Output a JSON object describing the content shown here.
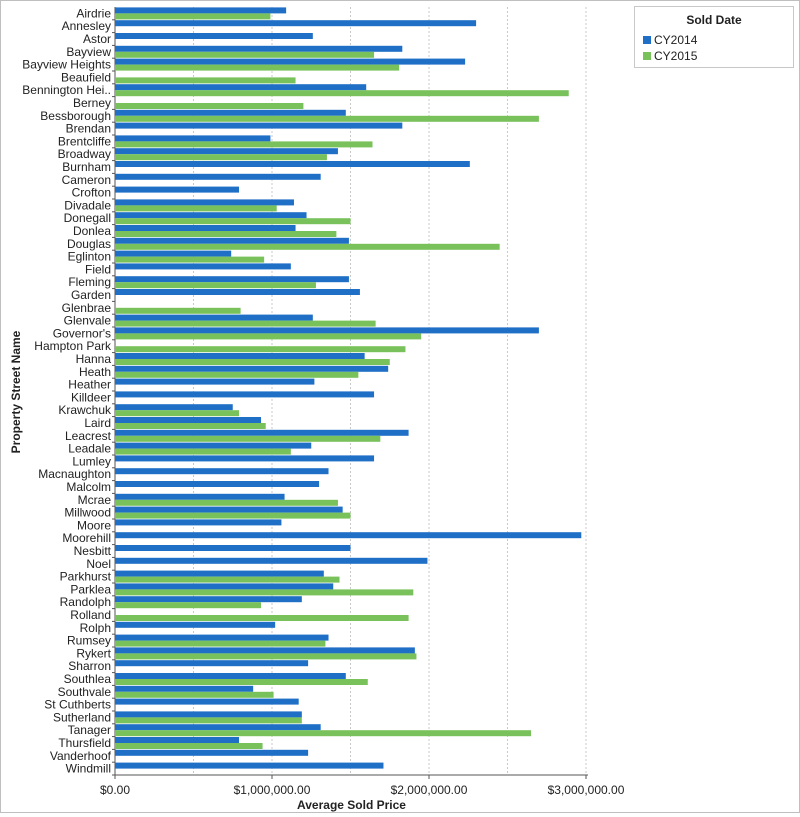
{
  "chart_data": {
    "type": "bar",
    "orientation": "horizontal",
    "xlabel": "Average Sold Price",
    "ylabel": "Property Street Name",
    "xlim": [
      0,
      3000000
    ],
    "xticks": [
      0,
      1000000,
      2000000,
      3000000
    ],
    "xtick_labels": [
      "$0.00",
      "$1,000,000.00",
      "$2,000,000.00",
      "$3,000,000.00"
    ],
    "grid": true,
    "legend_title": "Sold Date",
    "legend_position": "top-right",
    "categories": [
      "Airdrie",
      "Annesley",
      "Astor",
      "Bayview",
      "Bayview Heights",
      "Beaufield",
      "Bennington Hei..",
      "Berney",
      "Bessborough",
      "Brendan",
      "Brentcliffe",
      "Broadway",
      "Burnham",
      "Cameron",
      "Crofton",
      "Divadale",
      "Donegall",
      "Donlea",
      "Douglas",
      "Eglinton",
      "Field",
      "Fleming",
      "Garden",
      "Glenbrae",
      "Glenvale",
      "Governor's",
      "Hampton Park",
      "Hanna",
      "Heath",
      "Heather",
      "Killdeer",
      "Krawchuk",
      "Laird",
      "Leacrest",
      "Leadale",
      "Lumley",
      "Macnaughton",
      "Malcolm",
      "Mcrae",
      "Millwood",
      "Moore",
      "Moorehill",
      "Nesbitt",
      "Noel",
      "Parkhurst",
      "Parklea",
      "Randolph",
      "Rolland",
      "Rolph",
      "Rumsey",
      "Rykert",
      "Sharron",
      "Southlea",
      "Southvale",
      "St Cuthberts",
      "Sutherland",
      "Tanager",
      "Thursfield",
      "Vanderhoof",
      "Windmill"
    ],
    "series": [
      {
        "name": "CY2014",
        "color": "#1f6fc6",
        "values": [
          1090000,
          2300000,
          1260000,
          1830000,
          2230000,
          null,
          1600000,
          null,
          1470000,
          1830000,
          990000,
          1420000,
          2260000,
          1310000,
          790000,
          1140000,
          1220000,
          1150000,
          1490000,
          740000,
          1120000,
          1490000,
          1560000,
          null,
          1260000,
          2700000,
          null,
          1590000,
          1740000,
          1270000,
          1650000,
          750000,
          930000,
          1870000,
          1250000,
          1650000,
          1360000,
          1300000,
          1080000,
          1450000,
          1060000,
          2970000,
          1500000,
          1990000,
          1330000,
          1390000,
          1190000,
          null,
          1020000,
          1360000,
          1910000,
          1230000,
          1470000,
          880000,
          1170000,
          1190000,
          1310000,
          790000,
          1230000,
          1710000
        ]
      },
      {
        "name": "CY2015",
        "color": "#79c15b",
        "values": [
          990000,
          null,
          null,
          1650000,
          1810000,
          1150000,
          2890000,
          1200000,
          2700000,
          null,
          1640000,
          1350000,
          null,
          null,
          null,
          1030000,
          1500000,
          1410000,
          2450000,
          950000,
          null,
          1280000,
          null,
          800000,
          1660000,
          1950000,
          1850000,
          1750000,
          1550000,
          null,
          null,
          790000,
          960000,
          1690000,
          1120000,
          null,
          null,
          null,
          1420000,
          1500000,
          null,
          null,
          null,
          null,
          1430000,
          1900000,
          930000,
          1870000,
          null,
          1340000,
          1920000,
          null,
          1610000,
          1010000,
          null,
          1190000,
          2650000,
          940000,
          null,
          null
        ]
      }
    ]
  }
}
